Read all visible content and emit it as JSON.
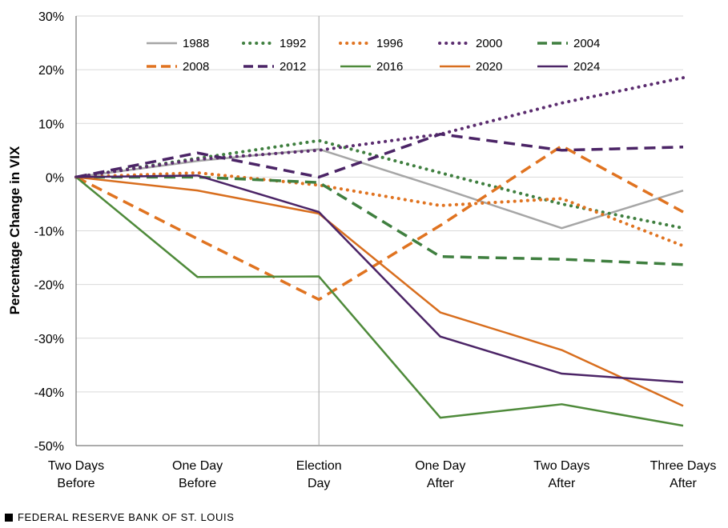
{
  "chart_data": {
    "type": "line",
    "title": "",
    "xlabel": "",
    "ylabel": "Percentage Change in VIX",
    "ylim": [
      -50,
      30
    ],
    "yticks": [
      30,
      20,
      10,
      0,
      -10,
      -20,
      -30,
      -40,
      -50
    ],
    "ytick_labels": [
      "30%",
      "20%",
      "10%",
      "0%",
      "-10%",
      "-20%",
      "-30%",
      "-40%",
      "-50%"
    ],
    "categories": [
      [
        "Two Days",
        "Before"
      ],
      [
        "One Day",
        "Before"
      ],
      [
        "Election",
        "Day"
      ],
      [
        "One Day",
        "After"
      ],
      [
        "Two Days",
        "After"
      ],
      [
        "Three Days",
        "After"
      ]
    ],
    "reference_line_at": "Election Day",
    "legend_position": "top",
    "series": [
      {
        "name": "1988",
        "color": "#A6A6A6",
        "style": "solid",
        "values": [
          0,
          3.0,
          5.2,
          -2.0,
          -9.5,
          -2.5
        ]
      },
      {
        "name": "1992",
        "color": "#3F7F3F",
        "style": "dotted",
        "values": [
          0,
          3.5,
          6.8,
          0.8,
          -5.0,
          -9.5
        ]
      },
      {
        "name": "1996",
        "color": "#E07320",
        "style": "dotted",
        "values": [
          0,
          0.8,
          -1.5,
          -5.3,
          -4.0,
          -12.8
        ]
      },
      {
        "name": "2000",
        "color": "#5B2C6F",
        "style": "dotted",
        "values": [
          0,
          3.3,
          5.0,
          8.0,
          13.8,
          18.5
        ]
      },
      {
        "name": "2004",
        "color": "#3F7F3F",
        "style": "dashed",
        "values": [
          0,
          0,
          -1.0,
          -14.8,
          -15.3,
          -16.3
        ]
      },
      {
        "name": "2008",
        "color": "#E07320",
        "style": "dashed",
        "values": [
          0,
          -11.5,
          -22.8,
          -9.0,
          5.8,
          -6.5
        ]
      },
      {
        "name": "2012",
        "color": "#4B2466",
        "style": "dashed",
        "values": [
          0,
          4.5,
          0,
          8.0,
          5.0,
          5.6
        ]
      },
      {
        "name": "2016",
        "color": "#4E8A3A",
        "style": "solid",
        "values": [
          0,
          -18.6,
          -18.5,
          -44.8,
          -42.3,
          -46.3
        ]
      },
      {
        "name": "2020",
        "color": "#D86E1E",
        "style": "solid",
        "values": [
          0,
          -2.5,
          -6.8,
          -25.2,
          -32.2,
          -42.6
        ]
      },
      {
        "name": "2024",
        "color": "#4B2466",
        "style": "solid",
        "values": [
          0,
          0.3,
          -6.5,
          -29.7,
          -36.6,
          -38.2
        ]
      }
    ]
  },
  "footer": {
    "source": "FEDERAL RESERVE BANK OF ST. LOUIS"
  }
}
